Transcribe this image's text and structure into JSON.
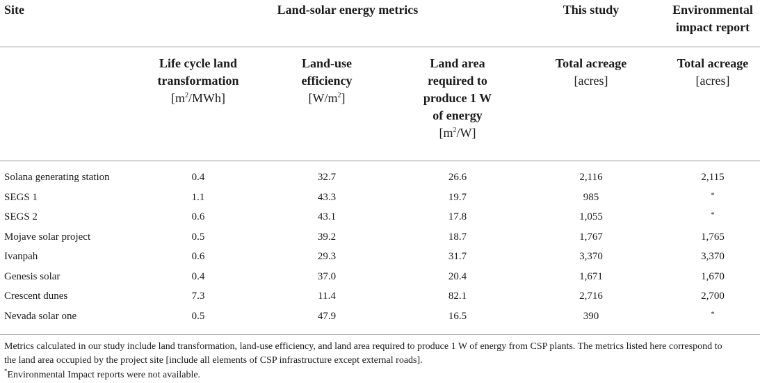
{
  "table": {
    "top_headers": {
      "site": "Site",
      "metrics": "Land-solar energy metrics",
      "this_study": "This study",
      "env_report_line1": "Environmental",
      "env_report_line2": "impact report"
    },
    "sub_headers": {
      "life_cycle": [
        "Life cycle land",
        "transformation",
        "[m",
        "2",
        "/MWh]"
      ],
      "land_use": [
        "Land-use",
        "efficiency",
        "[W/m",
        "2",
        "]"
      ],
      "land_area": [
        "Land area",
        "required to",
        "produce 1 W",
        "of energy",
        "[m",
        "2",
        "/W]"
      ],
      "total_acreage_study": [
        "Total acreage",
        "[acres]"
      ],
      "total_acreage_report": [
        "Total acreage",
        "[acres]"
      ]
    },
    "rows": [
      {
        "site": "Solana generating station",
        "lclt": "0.4",
        "lue": "32.7",
        "land": "26.6",
        "study": "2,116",
        "report": "2,115"
      },
      {
        "site": "SEGS 1",
        "lclt": "1.1",
        "lue": "43.3",
        "land": "19.7",
        "study": "985",
        "report": "*"
      },
      {
        "site": "SEGS 2",
        "lclt": "0.6",
        "lue": "43.1",
        "land": "17.8",
        "study": "1,055",
        "report": "*"
      },
      {
        "site": "Mojave solar project",
        "lclt": "0.5",
        "lue": "39.2",
        "land": "18.7",
        "study": "1,767",
        "report": "1,765"
      },
      {
        "site": "Ivanpah",
        "lclt": "0.6",
        "lue": "29.3",
        "land": "31.7",
        "study": "3,370",
        "report": "3,370"
      },
      {
        "site": "Genesis solar",
        "lclt": "0.4",
        "lue": "37.0",
        "land": "20.4",
        "study": "1,671",
        "report": "1,670"
      },
      {
        "site": "Crescent dunes",
        "lclt": "7.3",
        "lue": "11.4",
        "land": "82.1",
        "study": "2,716",
        "report": "2,700"
      },
      {
        "site": "Nevada solar one",
        "lclt": "0.5",
        "lue": "47.9",
        "land": "16.5",
        "study": "390",
        "report": "*"
      }
    ]
  },
  "notes": {
    "caption_line1": "Metrics calculated in our study include land transformation, land-use efficiency, and land area required to produce 1 W of energy from CSP plants. The metrics listed here correspond to",
    "caption_line2": "the land area occupied by the project site [include all elements of CSP infrastructure except external roads].",
    "footnote_mark": "*",
    "footnote_text": "Environmental Impact reports were not available."
  }
}
